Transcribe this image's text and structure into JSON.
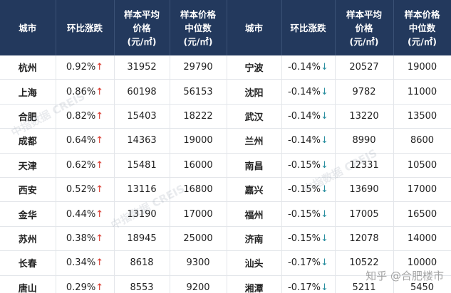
{
  "table": {
    "header": [
      [
        "城市"
      ],
      [
        "环比涨跌"
      ],
      [
        "样本平均",
        "价格",
        "(元/㎡)"
      ],
      [
        "样本价格",
        "中位数",
        "(元/㎡)"
      ],
      [
        "城市"
      ],
      [
        "环比涨跌"
      ],
      [
        "样本平均",
        "价格",
        "(元/㎡)"
      ],
      [
        "样本价格",
        "中位数",
        "(元/㎡)"
      ]
    ],
    "rows": [
      [
        "杭州",
        "0.92%↑",
        "31952",
        "29790",
        "宁波",
        "-0.14%↓",
        "20527",
        "19000"
      ],
      [
        "上海",
        "0.86%↑",
        "60198",
        "56153",
        "沈阳",
        "-0.14%↓",
        "9782",
        "11000"
      ],
      [
        "合肥",
        "0.82%↑",
        "15403",
        "18222",
        "武汉",
        "-0.14%↓",
        "13220",
        "13500"
      ],
      [
        "成都",
        "0.64%↑",
        "14363",
        "19000",
        "兰州",
        "-0.14%↓",
        "8990",
        "8600"
      ],
      [
        "天津",
        "0.62%↑",
        "15481",
        "16000",
        "南昌",
        "-0.15%↓",
        "12331",
        "10500"
      ],
      [
        "西安",
        "0.52%↑",
        "13116",
        "16800",
        "嘉兴",
        "-0.15%↓",
        "13690",
        "17000"
      ],
      [
        "金华",
        "0.44%↑",
        "13190",
        "17000",
        "福州",
        "-0.15%↓",
        "17005",
        "16500"
      ],
      [
        "苏州",
        "0.38%↑",
        "18945",
        "25000",
        "济南",
        "-0.15%↓",
        "12078",
        "14000"
      ],
      [
        "长春",
        "0.34%↑",
        "8618",
        "9300",
        "汕头",
        "-0.17%↓",
        "10522",
        "10000"
      ],
      [
        "唐山",
        "0.29%↑",
        "8553",
        "9200",
        "湘潭",
        "-0.17%↓",
        "5211",
        "5450"
      ]
    ]
  },
  "watermarks": [
    "中指数据 CREIS",
    "知乎 @合肥楼市"
  ]
}
